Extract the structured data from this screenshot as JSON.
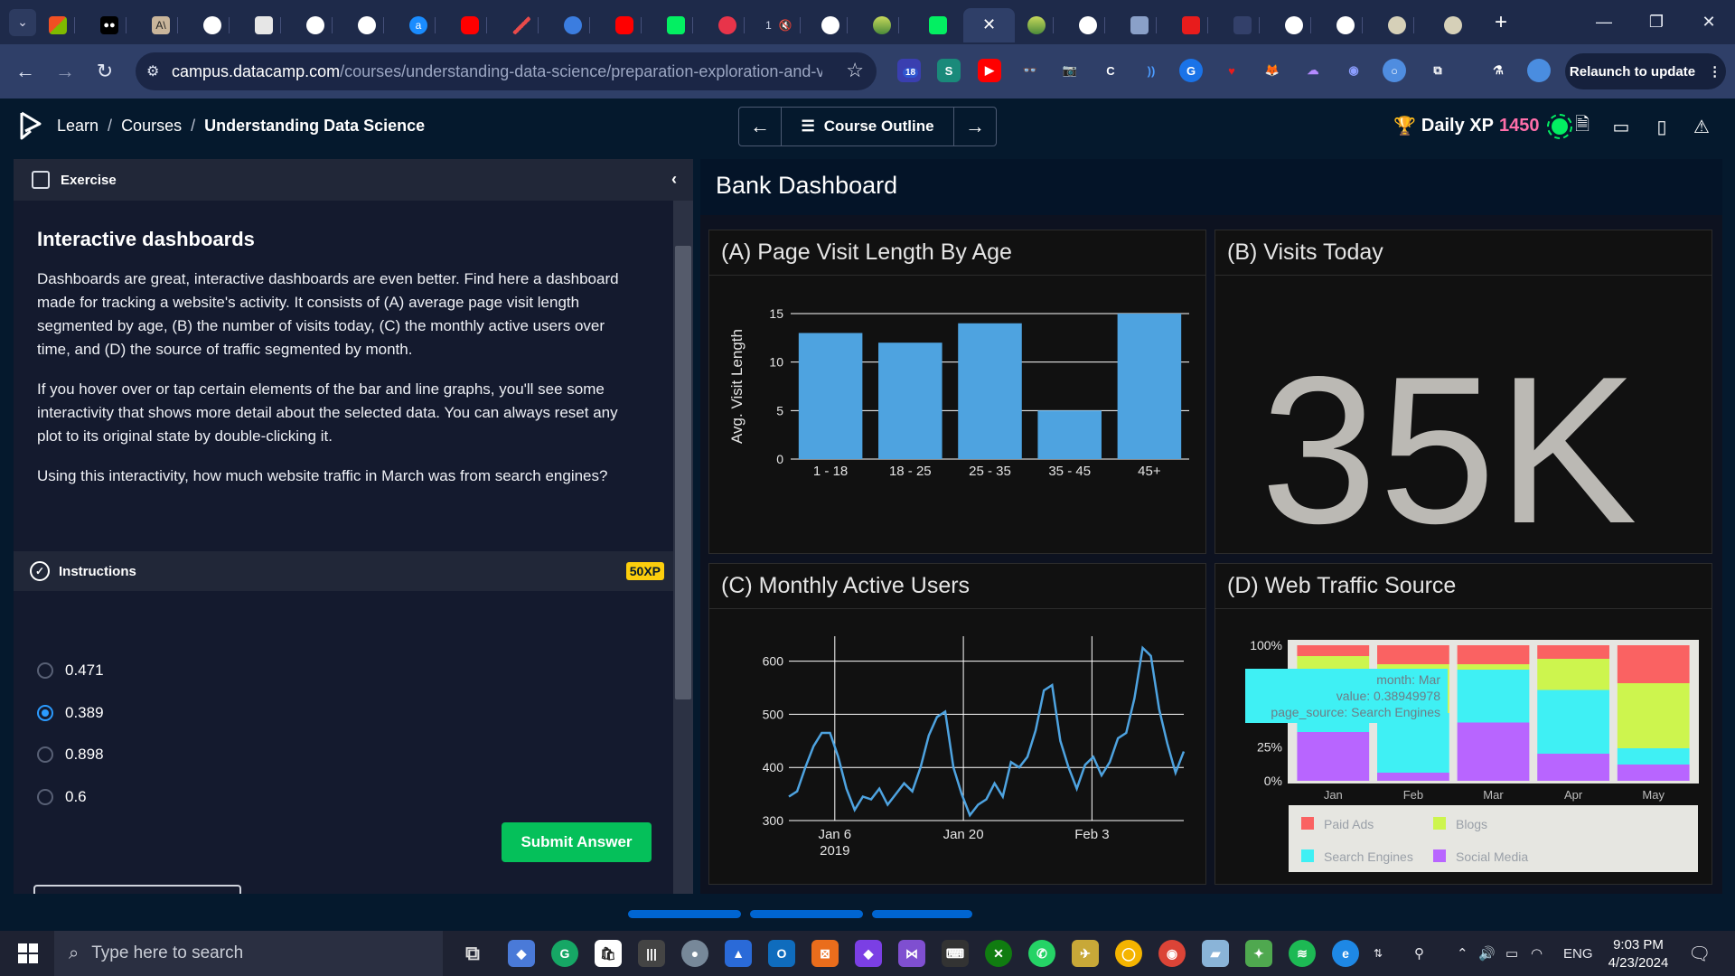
{
  "browser": {
    "url_host": "campus.datacamp.com",
    "url_path": "/courses/understanding-data-science/preparation-exploration-and-vi...",
    "relaunch_label": "Relaunch to update",
    "ext_badge": "18",
    "tab_mute_label": "1"
  },
  "header": {
    "crumbs": [
      "Learn",
      "Courses",
      "Understanding Data Science"
    ],
    "outline_label": "Course Outline",
    "xp_label": "Daily XP",
    "xp_value": "1450"
  },
  "exercise": {
    "header": "Exercise",
    "title": "Interactive dashboards",
    "para1": "Dashboards are great, interactive dashboards are even better. Find here a dashboard made for tracking a website's activity. It consists of (A) average page visit length segmented by age, (B) the number of visits today, (C) the monthly active users over time, and (D) the source of traffic segmented by month.",
    "para2": "If you hover over or tap certain elements of the bar and line graphs, you'll see some interactivity that shows more detail about the selected data. You can always reset any plot to its original state by double-clicking it.",
    "para3": "Using this interactivity, how much website traffic in March was from search engines?",
    "instructions_label": "Instructions",
    "xp_badge": "50XP",
    "options": [
      "0.471",
      "0.389",
      "0.898",
      "0.6"
    ],
    "selected_option": 1,
    "submit_label": "Submit Answer"
  },
  "dashboard": {
    "title": "Bank Dashboard",
    "panel_a": "(A) Page Visit Length By Age",
    "panel_b": "(B) Visits Today",
    "panel_c": "(C) Monthly Active Users",
    "panel_d": "(D) Web Traffic Source",
    "visits_today": "35K",
    "tooltip": {
      "line1": "month: Mar",
      "line2": "value: 0.38949978",
      "line3": "page_source: Search Engines"
    }
  },
  "chart_data": [
    {
      "type": "bar",
      "title": "(A) Page Visit Length By Age",
      "categories": [
        "1 - 18",
        "18 - 25",
        "25 - 35",
        "35 - 45",
        "45+"
      ],
      "values": [
        13,
        12,
        14,
        5,
        15
      ],
      "ylabel": "Avg. Visit Length",
      "ylim": [
        0,
        15
      ],
      "yticks": [
        0,
        5,
        10,
        15
      ],
      "color": "#4ea3e0",
      "grid": true
    },
    {
      "type": "line",
      "title": "(C) Monthly Active Users",
      "x_range": [
        "2019-01-01",
        "2019-02-13"
      ],
      "xticks": [
        {
          "date": "2019-01-06",
          "label": "Jan 6",
          "sub": "2019"
        },
        {
          "date": "2019-01-20",
          "label": "Jan 20",
          "sub": ""
        },
        {
          "date": "2019-02-03",
          "label": "Feb 3",
          "sub": ""
        }
      ],
      "ylim": [
        300,
        630
      ],
      "yticks": [
        300,
        400,
        500,
        600
      ],
      "values": [
        345,
        355,
        400,
        440,
        465,
        465,
        420,
        360,
        320,
        345,
        340,
        360,
        330,
        350,
        370,
        355,
        400,
        460,
        495,
        505,
        400,
        350,
        310,
        330,
        340,
        370,
        345,
        410,
        400,
        420,
        470,
        545,
        555,
        450,
        400,
        360,
        405,
        420,
        385,
        410,
        455,
        465,
        530,
        625,
        610,
        510,
        445,
        390,
        430
      ],
      "color": "#4ea3e0",
      "grid": true
    },
    {
      "type": "bar",
      "title": "(D) Web Traffic Source",
      "stacked": true,
      "categories": [
        "Jan",
        "Feb",
        "Mar",
        "Apr",
        "May"
      ],
      "yticks": [
        "0%",
        "25%",
        "100%"
      ],
      "series": [
        {
          "name": "Social Media",
          "values": [
            0.36,
            0.06,
            0.43,
            0.2,
            0.12
          ],
          "color": "#b865ff"
        },
        {
          "name": "Search Engines",
          "values": [
            0.14,
            0.44,
            0.39,
            0.47,
            0.12
          ],
          "color": "#3ff0f4"
        },
        {
          "name": "Blogs",
          "values": [
            0.42,
            0.36,
            0.04,
            0.23,
            0.48
          ],
          "color": "#cdf54e"
        },
        {
          "name": "Paid Ads",
          "values": [
            0.08,
            0.14,
            0.14,
            0.1,
            0.28
          ],
          "color": "#fa6262"
        }
      ],
      "legend": [
        "Paid Ads",
        "Blogs",
        "Search Engines",
        "Social Media"
      ],
      "legend_colors": [
        "#fa6262",
        "#cdf54e",
        "#3ff0f4",
        "#b865ff"
      ],
      "legend_position": "bottom"
    }
  ],
  "taskbar": {
    "search_placeholder": "Type here to search",
    "lang": "ENG",
    "time": "9:03 PM",
    "date": "4/23/2024"
  }
}
